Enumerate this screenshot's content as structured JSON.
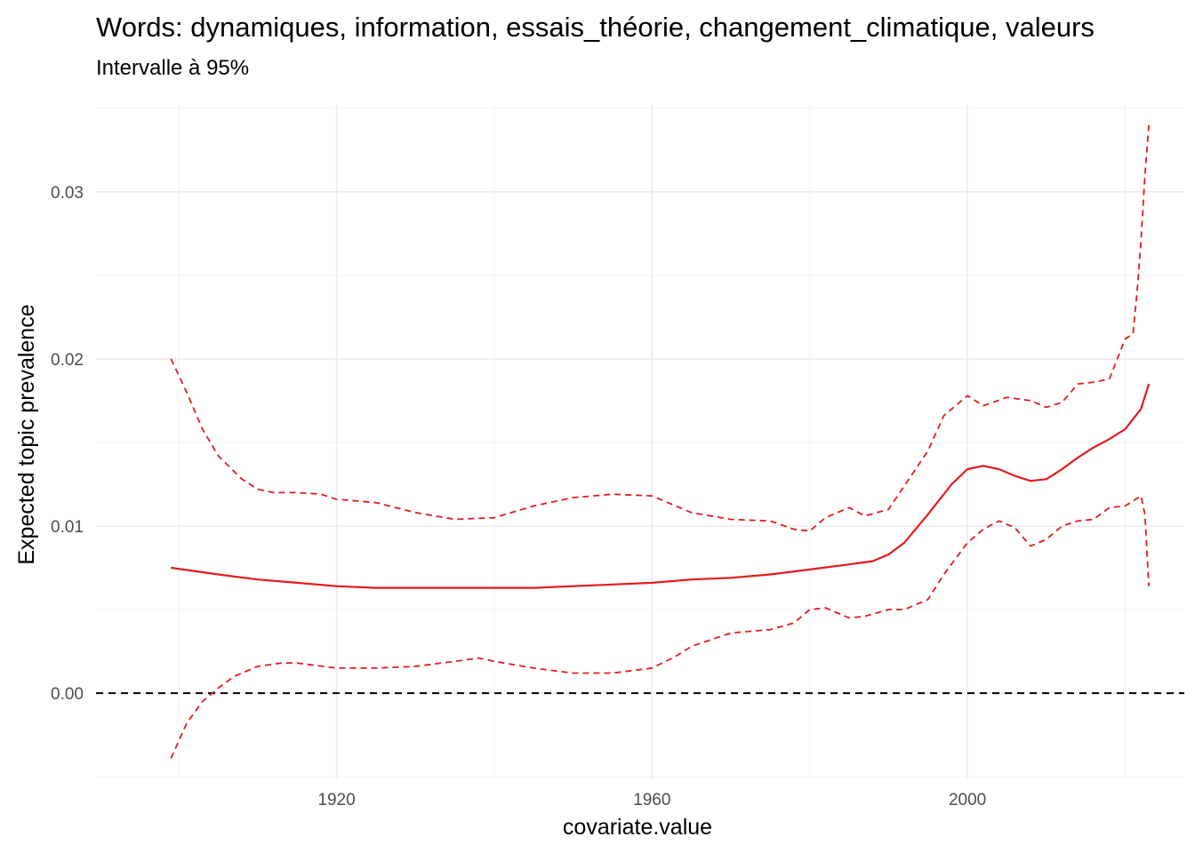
{
  "chart_data": {
    "type": "line",
    "title": "Words: dynamiques, information, essais_théorie, changement_climatique, valeurs",
    "subtitle": "Intervalle à 95%",
    "xlabel": "covariate.value",
    "ylabel": "Expected topic prevalence",
    "xlim": [
      1889.5,
      2027.5
    ],
    "ylim": [
      -0.0051,
      0.0352
    ],
    "x_ticks": [
      1920,
      1960,
      2000
    ],
    "x_tick_labels": [
      "1920",
      "1960",
      "2000"
    ],
    "y_ticks": [
      0.0,
      0.01,
      0.02,
      0.03
    ],
    "y_tick_labels": [
      "0.00",
      "0.01",
      "0.02",
      "0.03"
    ],
    "grid": true,
    "reference_line": {
      "y": 0.0,
      "style": "dashed",
      "color": "#000000"
    },
    "color": "#e41a1c",
    "series": [
      {
        "role": "estimate",
        "style": "solid",
        "x": [
          1899,
          1905,
          1910,
          1915,
          1920,
          1925,
          1930,
          1935,
          1940,
          1945,
          1950,
          1955,
          1960,
          1965,
          1970,
          1975,
          1980,
          1985,
          1988,
          1990,
          1992,
          1995,
          1998,
          2000,
          2002,
          2004,
          2006,
          2008,
          2010,
          2012,
          2014,
          2016,
          2018,
          2020,
          2022,
          2023
        ],
        "values": [
          0.0075,
          0.0071,
          0.0068,
          0.0066,
          0.0064,
          0.0063,
          0.0063,
          0.0063,
          0.0063,
          0.0063,
          0.0064,
          0.0065,
          0.0066,
          0.0068,
          0.0069,
          0.0071,
          0.0074,
          0.0077,
          0.0079,
          0.0083,
          0.009,
          0.0107,
          0.0125,
          0.0134,
          0.0136,
          0.0134,
          0.013,
          0.0127,
          0.0128,
          0.0134,
          0.0141,
          0.0147,
          0.0152,
          0.0158,
          0.017,
          0.0185
        ]
      },
      {
        "role": "upper-bound",
        "style": "dashed",
        "x": [
          1899,
          1901,
          1903,
          1905,
          1908,
          1910,
          1912,
          1915,
          1918,
          1920,
          1925,
          1930,
          1935,
          1940,
          1945,
          1950,
          1955,
          1960,
          1963,
          1965,
          1970,
          1975,
          1978,
          1980,
          1982,
          1985,
          1987,
          1990,
          1992,
          1995,
          1997,
          2000,
          2002,
          2005,
          2008,
          2010,
          2012,
          2014,
          2016,
          2018,
          2019,
          2020,
          2021,
          2021.5,
          2022,
          2022.5,
          2023
        ],
        "values": [
          0.02,
          0.018,
          0.0158,
          0.0142,
          0.0128,
          0.0122,
          0.012,
          0.012,
          0.0119,
          0.0116,
          0.0114,
          0.0108,
          0.0104,
          0.0105,
          0.0112,
          0.0117,
          0.0119,
          0.0118,
          0.0112,
          0.0108,
          0.0104,
          0.0103,
          0.0098,
          0.0097,
          0.0105,
          0.0111,
          0.0106,
          0.011,
          0.0124,
          0.0145,
          0.0166,
          0.0178,
          0.0172,
          0.0177,
          0.0175,
          0.0171,
          0.0174,
          0.0185,
          0.0186,
          0.0188,
          0.02,
          0.0212,
          0.0215,
          0.024,
          0.027,
          0.031,
          0.034
        ]
      },
      {
        "role": "lower-bound",
        "style": "dashed",
        "x": [
          1899,
          1901,
          1903,
          1905,
          1907,
          1910,
          1913,
          1915,
          1920,
          1925,
          1930,
          1935,
          1938,
          1940,
          1945,
          1950,
          1955,
          1960,
          1963,
          1965,
          1970,
          1975,
          1978,
          1980,
          1982,
          1985,
          1987,
          1990,
          1992,
          1995,
          1997,
          2000,
          2002,
          2004,
          2006,
          2008,
          2010,
          2012,
          2014,
          2016,
          2018,
          2020,
          2021,
          2022,
          2022.5,
          2023
        ],
        "values": [
          -0.0039,
          -0.0018,
          -0.0005,
          0.0003,
          0.001,
          0.0016,
          0.0018,
          0.0018,
          0.0015,
          0.0015,
          0.0016,
          0.0019,
          0.0021,
          0.0019,
          0.0015,
          0.0012,
          0.0012,
          0.0015,
          0.0022,
          0.0028,
          0.0036,
          0.0038,
          0.0042,
          0.005,
          0.0051,
          0.0045,
          0.0046,
          0.005,
          0.005,
          0.0056,
          0.0071,
          0.009,
          0.0098,
          0.0103,
          0.0099,
          0.0088,
          0.0092,
          0.01,
          0.0103,
          0.0104,
          0.0111,
          0.0112,
          0.0115,
          0.0118,
          0.0107,
          0.0064
        ]
      }
    ]
  }
}
